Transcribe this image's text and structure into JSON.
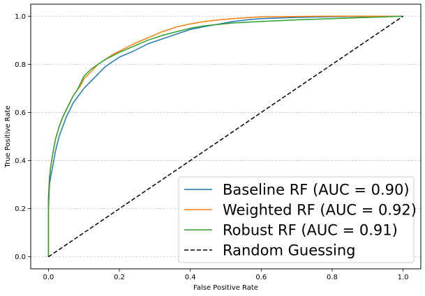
{
  "chart_data": {
    "type": "line",
    "title": "",
    "xlabel": "False Positive Rate",
    "ylabel": "True Positive Rate",
    "xlim": [
      -0.05,
      1.05
    ],
    "ylim": [
      -0.05,
      1.05
    ],
    "xticks": [
      0.0,
      0.2,
      0.4,
      0.6,
      0.8,
      1.0
    ],
    "yticks": [
      0.0,
      0.2,
      0.4,
      0.6,
      0.8,
      1.0
    ],
    "xtick_labels": [
      "0.0",
      "0.2",
      "0.4",
      "0.6",
      "0.8",
      "1.0"
    ],
    "ytick_labels": [
      "0.0",
      "0.2",
      "0.4",
      "0.6",
      "0.8",
      "1.0"
    ],
    "grid": {
      "y": true,
      "x": false,
      "style": "dashed"
    },
    "legend_position": "bottom-right",
    "series": [
      {
        "name": "Baseline RF (AUC = 0.90)",
        "color": "#1f77b4",
        "linestyle": "solid",
        "x": [
          0.0,
          0.0,
          0.003,
          0.006,
          0.01,
          0.015,
          0.02,
          0.03,
          0.04,
          0.05,
          0.06,
          0.07,
          0.08,
          0.09,
          0.1,
          0.12,
          0.14,
          0.16,
          0.18,
          0.2,
          0.24,
          0.28,
          0.32,
          0.36,
          0.4,
          0.44,
          0.48,
          0.52,
          0.56,
          0.6,
          0.7,
          0.8,
          0.9,
          1.0
        ],
        "y": [
          0.0,
          0.2,
          0.3,
          0.33,
          0.36,
          0.4,
          0.44,
          0.5,
          0.54,
          0.58,
          0.61,
          0.64,
          0.66,
          0.68,
          0.7,
          0.73,
          0.76,
          0.79,
          0.81,
          0.83,
          0.855,
          0.885,
          0.905,
          0.925,
          0.945,
          0.957,
          0.967,
          0.978,
          0.985,
          0.99,
          0.995,
          0.998,
          0.999,
          1.0
        ]
      },
      {
        "name": "Weighted RF (AUC = 0.92)",
        "color": "#ff7f0e",
        "linestyle": "solid",
        "x": [
          0.0,
          0.0,
          0.003,
          0.006,
          0.01,
          0.015,
          0.02,
          0.03,
          0.04,
          0.05,
          0.06,
          0.07,
          0.08,
          0.09,
          0.1,
          0.12,
          0.14,
          0.16,
          0.18,
          0.2,
          0.24,
          0.28,
          0.32,
          0.36,
          0.4,
          0.44,
          0.48,
          0.52,
          0.56,
          0.6,
          0.7,
          0.8,
          0.9,
          1.0
        ],
        "y": [
          0.0,
          0.24,
          0.33,
          0.37,
          0.41,
          0.45,
          0.49,
          0.54,
          0.58,
          0.61,
          0.64,
          0.67,
          0.69,
          0.71,
          0.74,
          0.77,
          0.8,
          0.82,
          0.84,
          0.855,
          0.885,
          0.91,
          0.935,
          0.955,
          0.968,
          0.978,
          0.985,
          0.99,
          0.994,
          0.997,
          0.999,
          1.0,
          1.0,
          1.0
        ]
      },
      {
        "name": "Robust RF (AUC = 0.91)",
        "color": "#2ca02c",
        "linestyle": "solid",
        "x": [
          0.0,
          0.0,
          0.003,
          0.006,
          0.01,
          0.015,
          0.02,
          0.03,
          0.04,
          0.05,
          0.06,
          0.07,
          0.08,
          0.09,
          0.1,
          0.12,
          0.14,
          0.16,
          0.18,
          0.2,
          0.24,
          0.28,
          0.32,
          0.36,
          0.4,
          0.44,
          0.48,
          0.52,
          0.56,
          0.6,
          0.7,
          0.8,
          0.9,
          1.0
        ],
        "y": [
          0.0,
          0.25,
          0.33,
          0.37,
          0.41,
          0.45,
          0.49,
          0.54,
          0.58,
          0.61,
          0.64,
          0.67,
          0.69,
          0.72,
          0.75,
          0.78,
          0.8,
          0.82,
          0.835,
          0.85,
          0.875,
          0.9,
          0.92,
          0.935,
          0.95,
          0.96,
          0.966,
          0.972,
          0.975,
          0.978,
          0.985,
          0.99,
          0.995,
          1.0
        ]
      },
      {
        "name": "Random Guessing",
        "color": "#000000",
        "linestyle": "dashed",
        "x": [
          0.0,
          1.0
        ],
        "y": [
          0.0,
          1.0
        ]
      }
    ]
  }
}
